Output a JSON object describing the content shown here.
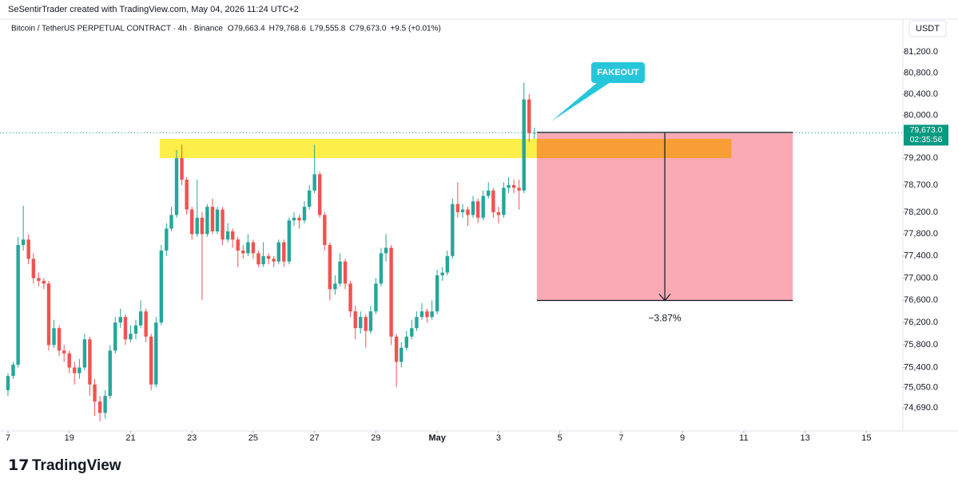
{
  "header": {
    "credit": "SeSentirTrader created with TradingView.com, May 04, 2026 11:24 UTC+2",
    "symbol": "Bitcoin / TetherUS PERPETUAL CONTRACT · 4h · Binance",
    "ohlc": [
      "O79,663.4",
      "H79,768.6",
      "L79,555.8",
      "C79,673.0",
      "+9.5 (+0.01%)"
    ]
  },
  "footer": {
    "logo": "TradingView"
  },
  "chart_data": {
    "type": "candlestick",
    "x": [
      17.0,
      17.17,
      17.33,
      17.5,
      17.67,
      17.83,
      18.0,
      18.17,
      18.33,
      18.5,
      18.67,
      18.83,
      19.0,
      19.17,
      19.33,
      19.5,
      19.67,
      19.83,
      20.0,
      20.17,
      20.33,
      20.5,
      20.67,
      20.83,
      21.0,
      21.17,
      21.33,
      21.5,
      21.67,
      21.83,
      22.0,
      22.17,
      22.33,
      22.5,
      22.67,
      22.83,
      23.0,
      23.17,
      23.33,
      23.5,
      23.67,
      23.83,
      24.0,
      24.17,
      24.33,
      24.5,
      24.67,
      24.83,
      25.0,
      25.17,
      25.33,
      25.5,
      25.67,
      25.83,
      26.0,
      26.17,
      26.33,
      26.5,
      26.67,
      26.83,
      27.0,
      27.17,
      27.33,
      27.5,
      27.67,
      27.83,
      28.0,
      28.17,
      28.33,
      28.5,
      28.67,
      28.83,
      29.0,
      29.17,
      29.33,
      29.5,
      29.67,
      29.83,
      30.0,
      30.17,
      30.33,
      30.5,
      30.67,
      30.83,
      31.0,
      31.17,
      31.33,
      31.5,
      31.67,
      31.83,
      32.0,
      32.17,
      32.33,
      32.5,
      32.67,
      32.83,
      33.0,
      33.17,
      33.33,
      33.5,
      33.67,
      33.83,
      34.0,
      34.17
    ],
    "open": [
      75000,
      75250,
      75450,
      77600,
      77700,
      77350,
      77000,
      76950,
      76900,
      75800,
      76100,
      75700,
      75650,
      75400,
      75300,
      75400,
      75900,
      75100,
      74800,
      74600,
      74900,
      75700,
      76200,
      76300,
      75900,
      76000,
      76150,
      76400,
      75950,
      75100,
      76200,
      77500,
      77900,
      78150,
      79200,
      78800,
      78250,
      77800,
      78100,
      77800,
      78300,
      77850,
      78250,
      77700,
      77850,
      77700,
      77500,
      77450,
      77650,
      77450,
      77250,
      77400,
      77350,
      77300,
      77650,
      77300,
      78050,
      78100,
      78050,
      78300,
      78600,
      78900,
      78150,
      77600,
      76800,
      76900,
      77300,
      76900,
      76400,
      76100,
      76300,
      76050,
      76400,
      76900,
      77450,
      77550,
      75950,
      75500,
      75750,
      75950,
      76100,
      76300,
      76400,
      76300,
      76400,
      77050,
      77100,
      77400,
      78350,
      78200,
      78250,
      78150,
      78400,
      78100,
      78500,
      78600,
      78200,
      78150,
      78650,
      78700,
      78650,
      78600,
      80300,
      79663.4
    ],
    "high": [
      75300,
      75500,
      77750,
      78320,
      77800,
      77450,
      77100,
      77000,
      76950,
      76250,
      76150,
      75800,
      75700,
      75500,
      75550,
      76000,
      75950,
      75200,
      74900,
      75000,
      75800,
      76300,
      76450,
      76350,
      76150,
      76250,
      76600,
      76450,
      76000,
      76300,
      77600,
      78000,
      78300,
      79350,
      79450,
      78850,
      78300,
      78800,
      78200,
      78350,
      78450,
      78300,
      78300,
      78000,
      77900,
      77750,
      77600,
      77800,
      77700,
      77500,
      77650,
      77450,
      77400,
      77700,
      77700,
      78100,
      78200,
      78150,
      78400,
      78700,
      79450,
      78950,
      78200,
      77650,
      77050,
      77450,
      77350,
      76950,
      76500,
      76400,
      76350,
      76500,
      77000,
      77550,
      77800,
      77600,
      76000,
      75850,
      76050,
      76250,
      76400,
      76550,
      76450,
      76600,
      77150,
      77200,
      77500,
      78450,
      78750,
      78350,
      78300,
      78500,
      78450,
      78600,
      78750,
      78650,
      78300,
      78750,
      78850,
      78800,
      78800,
      80620,
      80400,
      79768.6
    ],
    "low": [
      74900,
      75200,
      75400,
      77500,
      77250,
      76900,
      76850,
      76800,
      75700,
      75750,
      75600,
      75500,
      75300,
      75100,
      75200,
      75350,
      74900,
      74550,
      74450,
      74500,
      74850,
      75650,
      76100,
      75800,
      75850,
      75900,
      76100,
      75850,
      75000,
      75050,
      76150,
      77400,
      77850,
      78100,
      78700,
      78150,
      77700,
      77750,
      76600,
      77750,
      77800,
      77800,
      77600,
      77650,
      77550,
      77200,
      77350,
      77400,
      77350,
      77200,
      77200,
      77250,
      77200,
      77250,
      77200,
      77250,
      77950,
      77900,
      78000,
      78250,
      78550,
      78100,
      77500,
      76600,
      76700,
      76850,
      76800,
      76300,
      75900,
      76000,
      75750,
      76000,
      76350,
      76850,
      77300,
      75800,
      75050,
      75400,
      75700,
      75900,
      76050,
      76250,
      76200,
      76250,
      76350,
      76950,
      77050,
      77350,
      78100,
      78100,
      77950,
      78100,
      78000,
      78050,
      78450,
      78100,
      78000,
      78100,
      78550,
      78550,
      78250,
      78550,
      79500,
      79555.8
    ],
    "close": [
      75250,
      75450,
      77600,
      77700,
      77350,
      77000,
      76950,
      76900,
      75800,
      76100,
      75700,
      75650,
      75400,
      75300,
      75400,
      75900,
      75100,
      74800,
      74600,
      74900,
      75700,
      76200,
      76300,
      75900,
      76000,
      76150,
      76400,
      75950,
      75100,
      76200,
      77500,
      77900,
      78150,
      79200,
      78800,
      78250,
      77800,
      78100,
      77800,
      78300,
      77850,
      78250,
      77700,
      77850,
      77700,
      77500,
      77450,
      77650,
      77450,
      77250,
      77400,
      77350,
      77300,
      77650,
      77300,
      78050,
      78100,
      78050,
      78300,
      78600,
      78900,
      78150,
      77600,
      76800,
      76900,
      77300,
      76900,
      76400,
      76100,
      76300,
      76050,
      76400,
      76900,
      77450,
      77550,
      75950,
      75500,
      75750,
      75950,
      76100,
      76300,
      76400,
      76300,
      76400,
      77050,
      77100,
      77400,
      78350,
      78200,
      78250,
      78150,
      78400,
      78100,
      78500,
      78600,
      78200,
      78150,
      78650,
      78700,
      78650,
      78600,
      80300,
      79663.4,
      79673.0
    ],
    "up_color": "#26a69a",
    "down_color": "#ef5350",
    "log_scale": true,
    "grid": false,
    "ylim": [
      74355,
      81460
    ],
    "yticks": [
      {
        "value": 81200,
        "label": "81,200.0"
      },
      {
        "value": 80800,
        "label": "80,800.0"
      },
      {
        "value": 80400,
        "label": "80,400.0"
      },
      {
        "value": 80000,
        "label": "80,000.0"
      },
      {
        "value": 79200,
        "label": "79,200.0"
      },
      {
        "value": 78700,
        "label": "78,700.0"
      },
      {
        "value": 78200,
        "label": "78,200.0"
      },
      {
        "value": 77800,
        "label": "77,800.0"
      },
      {
        "value": 77400,
        "label": "77,400.0"
      },
      {
        "value": 77000,
        "label": "77,000.0"
      },
      {
        "value": 76600,
        "label": "76,600.0"
      },
      {
        "value": 76200,
        "label": "76,200.0"
      },
      {
        "value": 75800,
        "label": "75,800.0"
      },
      {
        "value": 75400,
        "label": "75,400.0"
      },
      {
        "value": 75050,
        "label": "75,050.0"
      },
      {
        "value": 74690,
        "label": "74,690.0"
      }
    ],
    "xlim": [
      16.74,
      46.19
    ],
    "xticks": [
      {
        "value": 17,
        "label": "7"
      },
      19,
      21,
      23,
      25,
      27,
      29,
      {
        "value": 31,
        "label": "May"
      },
      {
        "value": 33,
        "label": "3"
      },
      {
        "value": 35,
        "label": "5"
      },
      {
        "value": 37,
        "label": "7"
      },
      {
        "value": 39,
        "label": "9"
      },
      {
        "value": 41,
        "label": "11"
      },
      {
        "value": 43,
        "label": "13"
      },
      {
        "value": 45,
        "label": "15"
      }
    ],
    "currency": "USDT",
    "current_price": {
      "value": 79673.0,
      "label": "79,673.0",
      "color": "#089981"
    },
    "countdown": "02:35:56",
    "zone": {
      "x": [
        21.95,
        40.6
      ],
      "y": [
        79200,
        79560
      ],
      "color": "#fdee4a"
    },
    "measure": {
      "x": [
        34.25,
        42.6
      ],
      "y": [
        79680,
        76597
      ],
      "label": "−3.87%",
      "color": "#f9aab4"
    },
    "callout": {
      "text": "FAKEOUT",
      "color": "#26c6da"
    }
  }
}
